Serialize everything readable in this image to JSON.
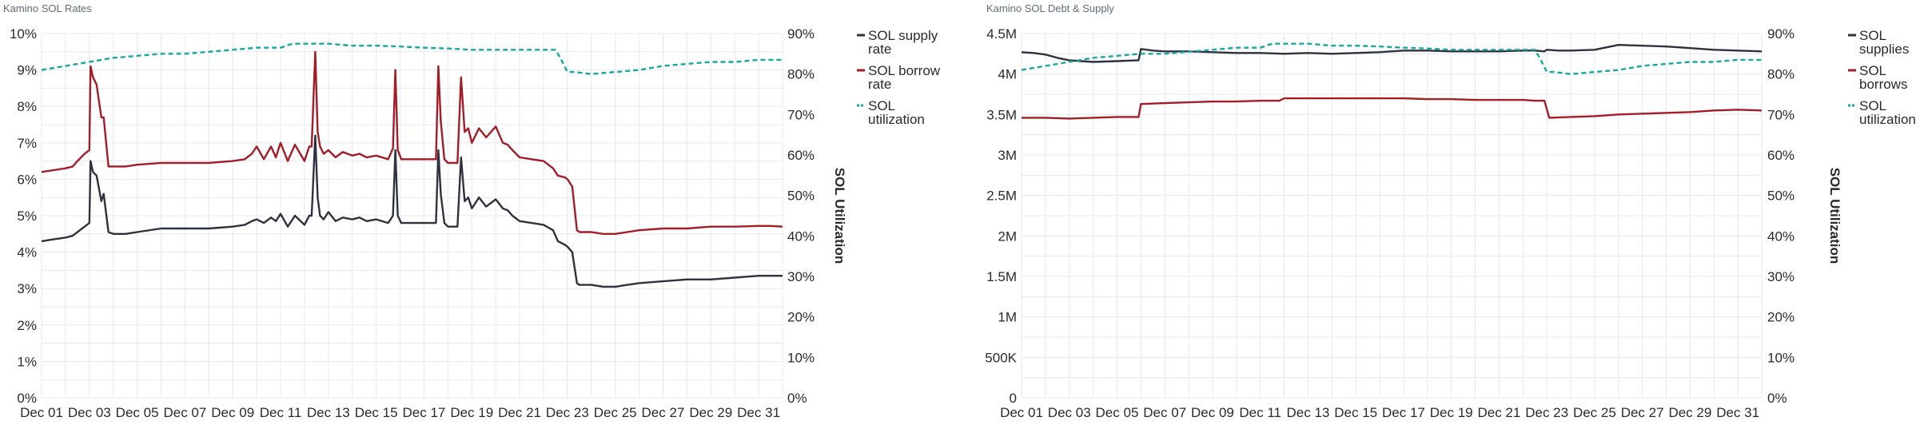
{
  "colors": {
    "supply_rate": "#2f3140",
    "borrow_rate": "#a31c26",
    "utilization": "#16a7a1",
    "grid": "#e6e8ec",
    "tick_text": "#2a2a2a"
  },
  "chart_data": [
    {
      "id": "rates",
      "title": "Kamino SOL Rates",
      "type": "line",
      "x_ticks": [
        "Dec 01",
        "Dec 03",
        "Dec 05",
        "Dec 07",
        "Dec 09",
        "Dec 11",
        "Dec 13",
        "Dec 15",
        "Dec 17",
        "Dec 19",
        "Dec 21",
        "Dec 23",
        "Dec 25",
        "Dec 27",
        "Dec 29",
        "Dec 31"
      ],
      "x_range_days": [
        1,
        32
      ],
      "ylim_left": [
        0,
        10
      ],
      "y_ticks_left": [
        "0%",
        "1%",
        "2%",
        "3%",
        "4%",
        "5%",
        "6%",
        "7%",
        "8%",
        "9%",
        "10%"
      ],
      "ylim_right": [
        0,
        90
      ],
      "y_ticks_right": [
        "0%",
        "10%",
        "20%",
        "30%",
        "40%",
        "50%",
        "60%",
        "70%",
        "80%",
        "90%"
      ],
      "ylabel_right": "SOL Utilization",
      "legend_position": "right",
      "grid": true,
      "series": [
        {
          "name": "SOL supply rate",
          "key": "supply_rate",
          "axis": "left",
          "style": "solid",
          "legend_lines": [
            "SOL supply",
            "rate"
          ],
          "x": [
            1,
            1.5,
            2,
            2.3,
            2.5,
            2.8,
            3,
            3.05,
            3.15,
            3.3,
            3.5,
            3.6,
            3.8,
            4,
            4.5,
            5,
            6,
            7,
            8,
            9,
            9.5,
            9.8,
            10,
            10.3,
            10.6,
            10.8,
            11,
            11.3,
            11.6,
            12,
            12.2,
            12.3,
            12.45,
            12.55,
            12.65,
            12.8,
            13,
            13.3,
            13.6,
            14,
            14.3,
            14.6,
            15,
            15.5,
            15.7,
            15.8,
            15.9,
            16.05,
            16.3,
            17,
            17.5,
            17.6,
            17.7,
            17.85,
            18,
            18.4,
            18.55,
            18.7,
            18.85,
            19,
            19.3,
            19.6,
            20,
            20.3,
            20.5,
            20.7,
            21,
            21.5,
            22,
            22.4,
            22.6,
            22.9,
            23,
            23.2,
            23.4,
            23.5,
            24,
            24.5,
            25,
            25.5,
            26,
            27,
            28,
            29,
            30,
            31,
            31.5,
            32
          ],
          "y": [
            4.3,
            4.35,
            4.4,
            4.45,
            4.55,
            4.7,
            4.8,
            6.5,
            6.2,
            6.1,
            5.4,
            5.6,
            4.55,
            4.5,
            4.5,
            4.55,
            4.65,
            4.65,
            4.65,
            4.7,
            4.75,
            4.85,
            4.9,
            4.8,
            4.95,
            4.85,
            5.05,
            4.7,
            5.0,
            4.75,
            5.0,
            5.0,
            7.2,
            5.5,
            5.0,
            4.9,
            5.1,
            4.85,
            4.95,
            4.9,
            4.95,
            4.85,
            4.9,
            4.8,
            5.0,
            6.8,
            5.0,
            4.8,
            4.8,
            4.8,
            4.8,
            6.8,
            5.6,
            4.8,
            4.7,
            4.7,
            6.6,
            5.4,
            5.5,
            5.2,
            5.5,
            5.25,
            5.45,
            5.2,
            5.15,
            5.0,
            4.85,
            4.8,
            4.75,
            4.6,
            4.3,
            4.2,
            4.15,
            4.0,
            3.15,
            3.1,
            3.1,
            3.05,
            3.05,
            3.1,
            3.15,
            3.2,
            3.25,
            3.25,
            3.3,
            3.35,
            3.35,
            3.35
          ]
        },
        {
          "name": "SOL borrow rate",
          "key": "borrow_rate",
          "axis": "left",
          "style": "solid",
          "legend_lines": [
            "SOL borrow",
            "rate"
          ],
          "x": [
            1,
            1.5,
            2,
            2.3,
            2.5,
            2.8,
            3,
            3.05,
            3.15,
            3.3,
            3.5,
            3.6,
            3.8,
            4,
            4.5,
            5,
            6,
            7,
            8,
            9,
            9.5,
            9.8,
            10,
            10.3,
            10.6,
            10.8,
            11,
            11.3,
            11.6,
            12,
            12.2,
            12.3,
            12.45,
            12.55,
            12.65,
            12.8,
            13,
            13.3,
            13.6,
            14,
            14.3,
            14.6,
            15,
            15.5,
            15.7,
            15.8,
            15.9,
            16.05,
            16.3,
            17,
            17.5,
            17.6,
            17.7,
            17.85,
            18,
            18.4,
            18.55,
            18.7,
            18.85,
            19,
            19.3,
            19.6,
            20,
            20.3,
            20.5,
            20.7,
            21,
            21.5,
            22,
            22.4,
            22.6,
            22.9,
            23,
            23.2,
            23.4,
            23.5,
            24,
            24.5,
            25,
            25.5,
            26,
            27,
            28,
            29,
            30,
            31,
            31.5,
            32
          ],
          "y": [
            6.2,
            6.25,
            6.3,
            6.35,
            6.5,
            6.7,
            6.8,
            9.1,
            8.8,
            8.6,
            7.7,
            7.7,
            6.35,
            6.35,
            6.35,
            6.4,
            6.45,
            6.45,
            6.45,
            6.5,
            6.55,
            6.7,
            6.9,
            6.55,
            6.9,
            6.6,
            7.0,
            6.5,
            6.95,
            6.5,
            6.9,
            6.9,
            9.5,
            7.3,
            6.9,
            6.7,
            6.8,
            6.6,
            6.75,
            6.65,
            6.7,
            6.6,
            6.65,
            6.55,
            6.85,
            9.0,
            6.8,
            6.55,
            6.55,
            6.55,
            6.55,
            9.1,
            7.6,
            6.55,
            6.45,
            6.45,
            8.8,
            7.3,
            7.4,
            7.0,
            7.4,
            7.15,
            7.45,
            7.0,
            6.95,
            6.8,
            6.6,
            6.55,
            6.5,
            6.3,
            6.1,
            6.05,
            6.0,
            5.8,
            4.6,
            4.55,
            4.55,
            4.5,
            4.5,
            4.55,
            4.6,
            4.65,
            4.65,
            4.7,
            4.7,
            4.72,
            4.72,
            4.7
          ]
        },
        {
          "name": "SOL utilization",
          "key": "utilization",
          "axis": "right",
          "style": "dashed",
          "legend_lines": [
            "SOL",
            "utilization"
          ],
          "x": [
            1,
            1.5,
            2,
            2.5,
            3,
            3.5,
            4,
            5,
            6,
            7,
            8,
            9,
            10,
            11,
            11.5,
            12,
            13,
            14,
            15,
            16,
            17,
            18,
            19,
            20,
            21,
            22,
            22.5,
            22.7,
            23,
            23.3,
            24,
            25,
            26,
            27,
            28,
            29,
            30,
            31,
            32
          ],
          "y": [
            81,
            81.5,
            82,
            82.5,
            83,
            83.5,
            84,
            84.5,
            85,
            85,
            85.5,
            86,
            86.5,
            86.5,
            87.5,
            87.5,
            87.5,
            87,
            87,
            86.8,
            86.5,
            86.3,
            86,
            86,
            86,
            86,
            86,
            84,
            80.5,
            80.5,
            80,
            80.5,
            81,
            82,
            82.5,
            83,
            83,
            83.5,
            83.5
          ]
        }
      ]
    },
    {
      "id": "debt",
      "title": "Kamino SOL Debt & Supply",
      "type": "line",
      "x_ticks": [
        "Dec 01",
        "Dec 03",
        "Dec 05",
        "Dec 07",
        "Dec 09",
        "Dec 11",
        "Dec 13",
        "Dec 15",
        "Dec 17",
        "Dec 19",
        "Dec 21",
        "Dec 23",
        "Dec 25",
        "Dec 27",
        "Dec 29",
        "Dec 31"
      ],
      "x_range_days": [
        1,
        32
      ],
      "ylim_left": [
        0,
        4500000
      ],
      "y_ticks_left": [
        "0",
        "500K",
        "1M",
        "1.5M",
        "2M",
        "2.5M",
        "3M",
        "3.5M",
        "4M",
        "4.5M"
      ],
      "ylim_right": [
        0,
        90
      ],
      "y_ticks_right": [
        "0%",
        "10%",
        "20%",
        "30%",
        "40%",
        "50%",
        "60%",
        "70%",
        "80%",
        "90%"
      ],
      "ylabel_right": "SOL Utilization",
      "legend_position": "right",
      "grid": true,
      "series": [
        {
          "name": "SOL supplies",
          "key": "supply_rate",
          "axis": "left",
          "style": "solid",
          "legend_lines": [
            "SOL",
            "supplies"
          ],
          "x": [
            1,
            1.5,
            2,
            2.5,
            3,
            3.5,
            4,
            5,
            5.9,
            6,
            6.5,
            7,
            8,
            9,
            10,
            11,
            12,
            13,
            14,
            15,
            16,
            17,
            18,
            19,
            20,
            21,
            22,
            22.5,
            22.9,
            23,
            23.5,
            24,
            25,
            26,
            27,
            28,
            29,
            30,
            31,
            32
          ],
          "y": [
            4270000,
            4260000,
            4240000,
            4200000,
            4170000,
            4160000,
            4150000,
            4160000,
            4170000,
            4310000,
            4290000,
            4280000,
            4280000,
            4270000,
            4260000,
            4260000,
            4250000,
            4260000,
            4250000,
            4260000,
            4270000,
            4290000,
            4290000,
            4280000,
            4280000,
            4280000,
            4290000,
            4290000,
            4280000,
            4300000,
            4290000,
            4290000,
            4300000,
            4360000,
            4350000,
            4340000,
            4320000,
            4300000,
            4290000,
            4280000
          ]
        },
        {
          "name": "SOL borrows",
          "key": "borrow_rate",
          "axis": "left",
          "style": "solid",
          "legend_lines": [
            "SOL",
            "borrows"
          ],
          "x": [
            1,
            2,
            3,
            4,
            5,
            5.9,
            6,
            7,
            8,
            9,
            10,
            11,
            11.8,
            12,
            13,
            14,
            15,
            16,
            17,
            18,
            19,
            20,
            21,
            22,
            22.5,
            22.9,
            23.1,
            24,
            25,
            26,
            27,
            28,
            29,
            30,
            31,
            32
          ],
          "y": [
            3460000,
            3460000,
            3450000,
            3460000,
            3470000,
            3470000,
            3630000,
            3640000,
            3650000,
            3660000,
            3660000,
            3670000,
            3670000,
            3700000,
            3700000,
            3700000,
            3700000,
            3700000,
            3700000,
            3690000,
            3690000,
            3680000,
            3680000,
            3680000,
            3670000,
            3670000,
            3460000,
            3470000,
            3480000,
            3500000,
            3510000,
            3520000,
            3530000,
            3550000,
            3560000,
            3550000
          ]
        },
        {
          "name": "SOL utilization",
          "key": "utilization",
          "axis": "right",
          "style": "dashed",
          "legend_lines": [
            "SOL",
            "utilization"
          ],
          "x": [
            1,
            1.5,
            2,
            2.5,
            3,
            3.5,
            4,
            5,
            6,
            7,
            8,
            9,
            10,
            11,
            11.5,
            12,
            13,
            14,
            15,
            16,
            17,
            18,
            19,
            20,
            21,
            22,
            22.5,
            22.7,
            23,
            23.3,
            24,
            25,
            26,
            27,
            28,
            29,
            30,
            31,
            32
          ],
          "y": [
            81,
            81.5,
            82,
            82.5,
            83,
            83.5,
            84,
            84.5,
            85,
            85,
            85.5,
            86,
            86.5,
            86.5,
            87.5,
            87.5,
            87.5,
            87,
            87,
            86.8,
            86.5,
            86.3,
            86,
            86,
            86,
            86,
            86,
            84,
            80.5,
            80.5,
            80,
            80.5,
            81,
            82,
            82.5,
            83,
            83,
            83.5,
            83.5
          ]
        }
      ]
    }
  ]
}
